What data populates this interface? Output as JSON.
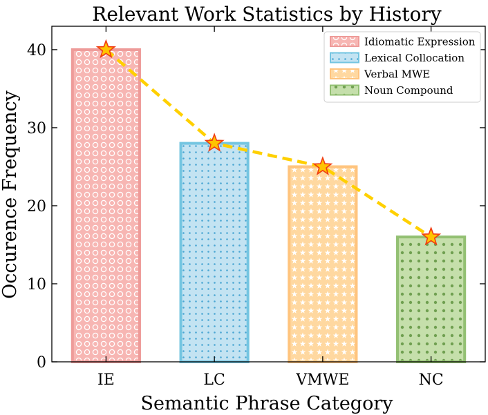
{
  "chart_data": {
    "type": "bar",
    "title": "Relevant Work Statistics by History",
    "xlabel": "Semantic Phrase Category",
    "ylabel": "Occurence Frequency",
    "categories": [
      "IE",
      "LC",
      "VMWE",
      "NC"
    ],
    "values": [
      40,
      28,
      25,
      16
    ],
    "ylim": [
      0,
      43
    ],
    "yticks": [
      0,
      10,
      20,
      30,
      40
    ],
    "grid": false,
    "legend_position": "top-right",
    "legend": [
      "Idiomatic Expression",
      "Lexical Collocation",
      "Verbal MWE",
      "Noun Compound"
    ],
    "overlay_line": {
      "type": "line",
      "marker": "star",
      "style": "dashed",
      "values": [
        40,
        28,
        25,
        16
      ]
    }
  },
  "colors": {
    "bar_fills": [
      "#f7b6b3",
      "#c3e3f2",
      "#ffd8a0",
      "#c5dfab"
    ],
    "bar_edges": [
      "#ee9b99",
      "#74c5e1",
      "#ffc47e",
      "#93c073"
    ],
    "pattern_colors": [
      "#ffffff",
      "#4aa6d3",
      "#ffffff",
      "#6f9f50"
    ],
    "line": "#ffd000",
    "star_fill": "#ffc400",
    "star_edge": "#f03c12"
  }
}
